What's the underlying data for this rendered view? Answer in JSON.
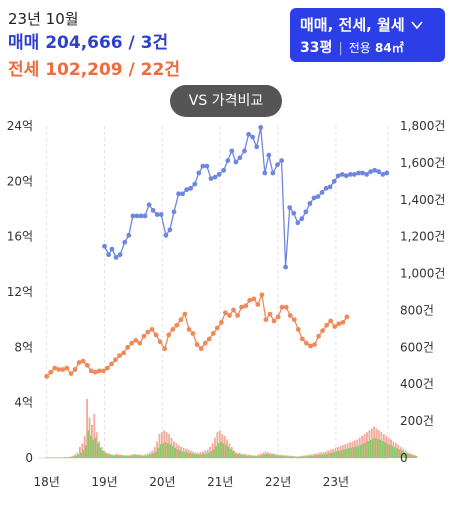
{
  "summary": {
    "period": "23년 10월",
    "sale_label": "매매",
    "sale_value": "204,666 / 3건",
    "jeonse_label": "전세",
    "jeonse_value": "102,209 / 22건"
  },
  "selector": {
    "types_label": "매매, 전세, 월세",
    "pyeong": "33평",
    "area_label": "전용",
    "area_value": "84㎡"
  },
  "compare_button": {
    "label": "VS 가격비교"
  },
  "colors": {
    "sale": "#6f86e0",
    "jeonse": "#ee8a5a",
    "volume_sale": "#f2a99a",
    "volume_jeonse": "#8fc86b",
    "accent": "#2c3ee8"
  },
  "chart_data": {
    "type": "line",
    "x_tick_labels": [
      "18년",
      "19년",
      "20년",
      "21년",
      "22년",
      "23년"
    ],
    "x_tick_positions": [
      2018,
      2019,
      2020,
      2021,
      2022,
      2023
    ],
    "xlim": [
      2017.85,
      2023.9
    ],
    "y_left": {
      "unit": "억",
      "ticks": [
        0,
        4,
        8,
        12,
        16,
        20,
        24
      ],
      "tick_labels": [
        "0",
        "4억",
        "8억",
        "12억",
        "16억",
        "20억",
        "24억"
      ],
      "ylim": [
        0,
        24
      ]
    },
    "y_right": {
      "unit": "건",
      "ticks": [
        0,
        200,
        400,
        600,
        800,
        1000,
        1200,
        1400,
        1600,
        1800
      ],
      "tick_labels": [
        "0",
        "200건",
        "400건",
        "600건",
        "800건",
        "1,000건",
        "1,200건",
        "1,400건",
        "1,600건",
        "1,800건"
      ],
      "ylim": [
        0,
        1800
      ]
    },
    "grid": "vertical",
    "series": [
      {
        "key": "sale",
        "points": [
          [
            2019.0,
            15.3
          ],
          [
            2019.07,
            14.7
          ],
          [
            2019.13,
            15.1
          ],
          [
            2019.2,
            14.5
          ],
          [
            2019.27,
            14.7
          ],
          [
            2019.35,
            15.6
          ],
          [
            2019.42,
            16.1
          ],
          [
            2019.49,
            17.5
          ],
          [
            2019.56,
            17.5
          ],
          [
            2019.63,
            17.5
          ],
          [
            2019.7,
            17.5
          ],
          [
            2019.77,
            18.3
          ],
          [
            2019.84,
            17.9
          ],
          [
            2019.91,
            17.6
          ],
          [
            2019.98,
            17.6
          ],
          [
            2020.06,
            16.1
          ],
          [
            2020.13,
            16.5
          ],
          [
            2020.2,
            17.8
          ],
          [
            2020.28,
            19.1
          ],
          [
            2020.35,
            19.1
          ],
          [
            2020.42,
            19.4
          ],
          [
            2020.49,
            19.5
          ],
          [
            2020.56,
            19.8
          ],
          [
            2020.63,
            20.6
          ],
          [
            2020.7,
            21.1
          ],
          [
            2020.77,
            21.1
          ],
          [
            2020.84,
            20.2
          ],
          [
            2020.91,
            20.3
          ],
          [
            2020.98,
            20.5
          ],
          [
            2021.06,
            20.8
          ],
          [
            2021.13,
            21.5
          ],
          [
            2021.2,
            22.2
          ],
          [
            2021.27,
            21.4
          ],
          [
            2021.34,
            21.7
          ],
          [
            2021.42,
            22.2
          ],
          [
            2021.49,
            23.4
          ],
          [
            2021.56,
            23.2
          ],
          [
            2021.63,
            22.5
          ],
          [
            2021.7,
            23.9
          ],
          [
            2021.77,
            20.6
          ],
          [
            2021.84,
            21.9
          ],
          [
            2021.91,
            20.6
          ],
          [
            2021.99,
            21.2
          ],
          [
            2022.06,
            21.5
          ],
          [
            2022.13,
            13.8
          ],
          [
            2022.2,
            18.1
          ],
          [
            2022.27,
            17.7
          ],
          [
            2022.34,
            17.0
          ],
          [
            2022.41,
            17.3
          ],
          [
            2022.48,
            17.8
          ],
          [
            2022.55,
            18.4
          ],
          [
            2022.62,
            18.8
          ],
          [
            2022.69,
            18.9
          ],
          [
            2022.76,
            19.2
          ],
          [
            2022.83,
            19.5
          ],
          [
            2022.9,
            19.6
          ],
          [
            2022.97,
            20.0
          ],
          [
            2023.04,
            20.4
          ],
          [
            2023.11,
            20.5
          ],
          [
            2023.18,
            20.4
          ],
          [
            2023.25,
            20.5
          ],
          [
            2023.32,
            20.5
          ],
          [
            2023.39,
            20.6
          ],
          [
            2023.46,
            20.6
          ],
          [
            2023.53,
            20.5
          ],
          [
            2023.6,
            20.7
          ],
          [
            2023.67,
            20.8
          ],
          [
            2023.74,
            20.7
          ],
          [
            2023.81,
            20.5
          ],
          [
            2023.88,
            20.6
          ]
        ]
      },
      {
        "key": "jeonse",
        "points": [
          [
            2018.0,
            5.9
          ],
          [
            2018.07,
            6.2
          ],
          [
            2018.14,
            6.5
          ],
          [
            2018.21,
            6.4
          ],
          [
            2018.28,
            6.4
          ],
          [
            2018.35,
            6.5
          ],
          [
            2018.42,
            6.1
          ],
          [
            2018.49,
            6.4
          ],
          [
            2018.56,
            6.9
          ],
          [
            2018.63,
            7.0
          ],
          [
            2018.7,
            6.7
          ],
          [
            2018.77,
            6.3
          ],
          [
            2018.84,
            6.2
          ],
          [
            2018.91,
            6.3
          ],
          [
            2018.98,
            6.3
          ],
          [
            2019.05,
            6.5
          ],
          [
            2019.12,
            6.8
          ],
          [
            2019.19,
            7.1
          ],
          [
            2019.26,
            7.4
          ],
          [
            2019.33,
            7.6
          ],
          [
            2019.4,
            8.0
          ],
          [
            2019.47,
            8.3
          ],
          [
            2019.54,
            8.5
          ],
          [
            2019.61,
            8.3
          ],
          [
            2019.68,
            8.8
          ],
          [
            2019.75,
            9.1
          ],
          [
            2019.82,
            9.3
          ],
          [
            2019.89,
            8.9
          ],
          [
            2019.96,
            8.4
          ],
          [
            2020.04,
            7.9
          ],
          [
            2020.11,
            8.9
          ],
          [
            2020.18,
            9.3
          ],
          [
            2020.25,
            9.6
          ],
          [
            2020.32,
            10.0
          ],
          [
            2020.39,
            10.4
          ],
          [
            2020.46,
            9.3
          ],
          [
            2020.53,
            9.0
          ],
          [
            2020.6,
            8.2
          ],
          [
            2020.67,
            7.9
          ],
          [
            2020.74,
            8.3
          ],
          [
            2020.81,
            8.6
          ],
          [
            2020.88,
            9.0
          ],
          [
            2020.95,
            9.4
          ],
          [
            2021.02,
            9.8
          ],
          [
            2021.09,
            10.5
          ],
          [
            2021.16,
            10.3
          ],
          [
            2021.23,
            10.7
          ],
          [
            2021.3,
            10.3
          ],
          [
            2021.37,
            10.9
          ],
          [
            2021.44,
            11.0
          ],
          [
            2021.51,
            11.4
          ],
          [
            2021.58,
            11.5
          ],
          [
            2021.65,
            11.1
          ],
          [
            2021.72,
            11.8
          ],
          [
            2021.79,
            10.0
          ],
          [
            2021.86,
            10.4
          ],
          [
            2021.93,
            9.9
          ],
          [
            2022.0,
            10.2
          ],
          [
            2022.07,
            10.9
          ],
          [
            2022.14,
            10.9
          ],
          [
            2022.21,
            10.3
          ],
          [
            2022.28,
            10.0
          ],
          [
            2022.35,
            9.3
          ],
          [
            2022.42,
            8.6
          ],
          [
            2022.49,
            8.3
          ],
          [
            2022.56,
            8.1
          ],
          [
            2022.63,
            8.2
          ],
          [
            2022.7,
            8.8
          ],
          [
            2022.77,
            9.2
          ],
          [
            2022.84,
            9.6
          ],
          [
            2022.91,
            9.9
          ],
          [
            2022.98,
            9.5
          ],
          [
            2023.05,
            9.7
          ],
          [
            2023.12,
            9.8
          ],
          [
            2023.19,
            10.2
          ]
        ]
      }
    ],
    "volume_series": [
      {
        "key": "sale_volume",
        "x_start": 2018.0,
        "x_step": 0.0417,
        "values": [
          3,
          4,
          3,
          2,
          3,
          2,
          4,
          3,
          5,
          4,
          8,
          12,
          20,
          30,
          60,
          80,
          120,
          320,
          220,
          180,
          240,
          140,
          90,
          60,
          40,
          30,
          25,
          20,
          18,
          22,
          20,
          18,
          16,
          15,
          14,
          18,
          20,
          22,
          20,
          18,
          16,
          18,
          25,
          30,
          40,
          60,
          90,
          130,
          140,
          150,
          140,
          130,
          110,
          90,
          80,
          70,
          60,
          55,
          50,
          45,
          40,
          35,
          30,
          28,
          32,
          35,
          40,
          45,
          60,
          80,
          110,
          140,
          150,
          130,
          120,
          100,
          80,
          60,
          40,
          30,
          28,
          25,
          22,
          20,
          18,
          16,
          15,
          14,
          20,
          25,
          30,
          35,
          30,
          28,
          25,
          22,
          20,
          18,
          16,
          15,
          14,
          13,
          12,
          10,
          8,
          10,
          12,
          14,
          16,
          18,
          20,
          22,
          25,
          28,
          30,
          32,
          35,
          40,
          45,
          50,
          55,
          60,
          65,
          70,
          75,
          80,
          85,
          90,
          95,
          100,
          110,
          120,
          130,
          140,
          150,
          160,
          170,
          160,
          150,
          140,
          130,
          120,
          110,
          100,
          90,
          80,
          70,
          60,
          50,
          40,
          30,
          25,
          20,
          15
        ]
      },
      {
        "key": "jeonse_volume",
        "x_start": 2018.0,
        "x_step": 0.0417,
        "values": [
          2,
          3,
          2,
          3,
          2,
          3,
          2,
          3,
          4,
          3,
          5,
          8,
          12,
          18,
          30,
          45,
          70,
          150,
          120,
          100,
          110,
          80,
          55,
          40,
          30,
          22,
          18,
          15,
          13,
          15,
          14,
          13,
          12,
          11,
          10,
          13,
          14,
          15,
          14,
          13,
          12,
          13,
          17,
          20,
          26,
          35,
          55,
          75,
          80,
          85,
          80,
          75,
          65,
          55,
          48,
          42,
          36,
          32,
          30,
          28,
          25,
          22,
          20,
          18,
          20,
          22,
          25,
          28,
          36,
          48,
          65,
          80,
          90,
          80,
          72,
          60,
          50,
          38,
          26,
          20,
          18,
          16,
          15,
          13,
          12,
          11,
          10,
          9,
          13,
          16,
          20,
          22,
          20,
          18,
          16,
          14,
          13,
          12,
          11,
          10,
          9,
          8,
          8,
          7,
          6,
          7,
          8,
          9,
          10,
          12,
          13,
          14,
          16,
          18,
          20,
          21,
          23,
          26,
          29,
          32,
          36,
          40,
          43,
          46,
          50,
          53,
          56,
          60,
          63,
          66,
          72,
          78,
          85,
          92,
          98,
          104,
          110,
          104,
          98,
          92,
          85,
          78,
          72,
          65,
          58,
          52,
          46,
          40,
          33,
          27,
          20,
          16,
          13,
          10
        ]
      }
    ]
  }
}
